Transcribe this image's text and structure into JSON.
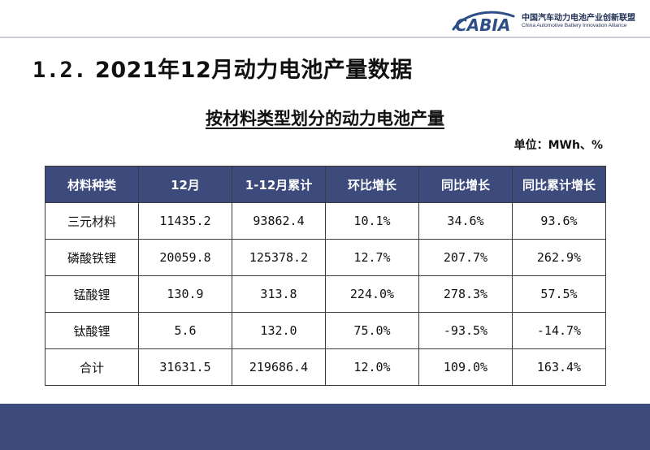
{
  "logo": {
    "brand": "CABIA",
    "org_cn": "中国汽车动力电池产业创新联盟",
    "org_en": "China Automotive Battery Innovation Alliance"
  },
  "section": {
    "number": "1.2.",
    "title": "2021年12月动力电池产量数据"
  },
  "table_title": "按材料类型划分的动力电池产量",
  "unit": "单位：MWh、%",
  "table": {
    "headers": [
      "材料种类",
      "12月",
      "1-12月累计",
      "环比增长",
      "同比增长",
      "同比累计增长"
    ],
    "rows": [
      [
        "三元材料",
        "11435.2",
        "93862.4",
        "10.1%",
        "34.6%",
        "93.6%"
      ],
      [
        "磷酸铁锂",
        "20059.8",
        "125378.2",
        "12.7%",
        "207.7%",
        "262.9%"
      ],
      [
        "锰酸锂",
        "130.9",
        "313.8",
        "224.0%",
        "278.3%",
        "57.5%"
      ],
      [
        "钛酸锂",
        "5.6",
        "132.0",
        "75.0%",
        "-93.5%",
        "-14.7%"
      ],
      [
        "合计",
        "31631.5",
        "219686.4",
        "12.0%",
        "109.0%",
        "163.4%"
      ]
    ]
  },
  "colors": {
    "header_bg": "#3c4a7c",
    "footer_bg": "#3c4a7c",
    "logo_blue": "#2d4f86"
  }
}
